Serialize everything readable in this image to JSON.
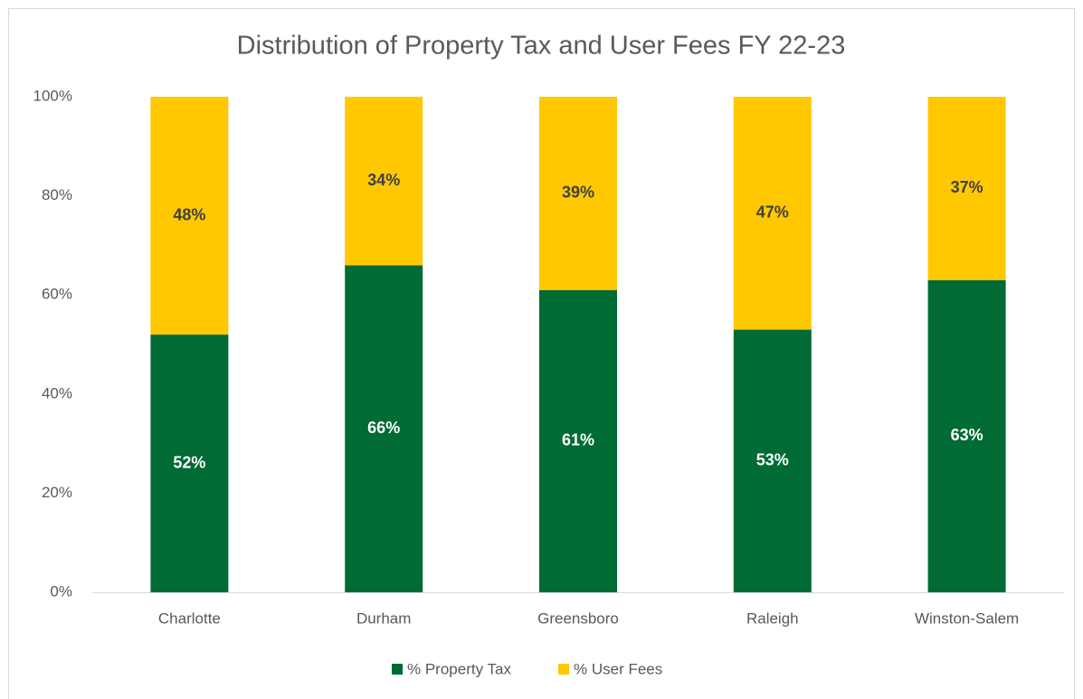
{
  "chart_data": {
    "type": "stacked_bar",
    "title": "Distribution of Property Tax and User Fees FY 22-23",
    "categories": [
      "Charlotte",
      "Durham",
      "Greensboro",
      "Raleigh",
      "Winston-Salem"
    ],
    "series": [
      {
        "name": "% Property Tax",
        "color": "#006b35",
        "values": [
          52,
          66,
          61,
          53,
          63
        ],
        "value_labels": [
          "52%",
          "66%",
          "61%",
          "53%",
          "63%"
        ]
      },
      {
        "name": "% User Fees",
        "color": "#ffc800",
        "values": [
          48,
          34,
          39,
          47,
          37
        ],
        "value_labels": [
          "48%",
          "34%",
          "39%",
          "47%",
          "37%"
        ]
      }
    ],
    "ylim": [
      0,
      100
    ],
    "yticks": [
      {
        "value": 0,
        "label": "0%"
      },
      {
        "value": 20,
        "label": "20%"
      },
      {
        "value": 40,
        "label": "40%"
      },
      {
        "value": 60,
        "label": "60%"
      },
      {
        "value": 80,
        "label": "80%"
      },
      {
        "value": 100,
        "label": "100%"
      }
    ],
    "grid": false,
    "legend": "bottom"
  }
}
